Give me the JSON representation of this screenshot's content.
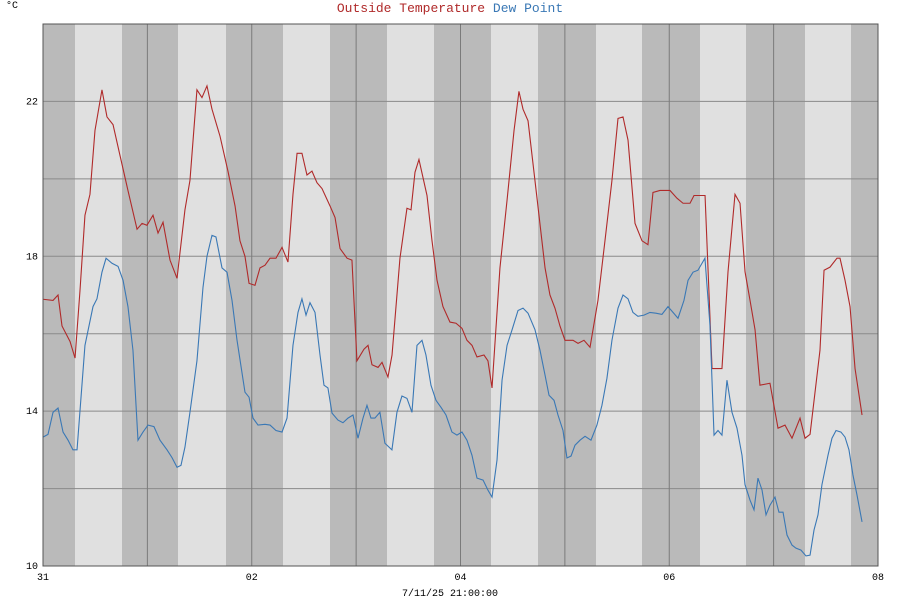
{
  "chart_data": {
    "type": "line",
    "ylabel": "°C",
    "xlabel": "7/11/25 21:00:00",
    "xlim": [
      0,
      8
    ],
    "xticks": [
      {
        "value": 0,
        "label": "31"
      },
      {
        "value": 1,
        "label": null
      },
      {
        "value": 2,
        "label": "02"
      },
      {
        "value": 3,
        "label": null
      },
      {
        "value": 4,
        "label": "04"
      },
      {
        "value": 5,
        "label": null
      },
      {
        "value": 6,
        "label": "06"
      },
      {
        "value": 7,
        "label": null
      },
      {
        "value": 8,
        "label": "08"
      }
    ],
    "ylim": [
      10,
      24
    ],
    "yticks": [
      10,
      {
        "value": 12,
        "label": null
      },
      14,
      {
        "value": 16,
        "label": null
      },
      18,
      {
        "value": 20,
        "label": null
      },
      22,
      {
        "value": 24,
        "label": null
      }
    ],
    "grid": true,
    "series": [
      {
        "name": "Outside Temperature",
        "color": "#b02a2a",
        "x": [
          0,
          0.096,
          0.144,
          0.182,
          0.259,
          0.307,
          0.354,
          0.402,
          0.45,
          0.498,
          0.565,
          0.613,
          0.671,
          0.738,
          0.814,
          0.901,
          0.949,
          0.996,
          1.054,
          1.102,
          1.15,
          1.217,
          1.284,
          1.36,
          1.408,
          1.475,
          1.523,
          1.571,
          1.619,
          1.696,
          1.772,
          1.84,
          1.887,
          1.935,
          1.974,
          2.031,
          2.079,
          2.127,
          2.175,
          2.232,
          2.29,
          2.347,
          2.395,
          2.434,
          2.481,
          2.529,
          2.577,
          2.625,
          2.673,
          2.75,
          2.798,
          2.846,
          2.913,
          2.96,
          3.008,
          3.075,
          3.114,
          3.152,
          3.21,
          3.248,
          3.305,
          3.344,
          3.42,
          3.487,
          3.526,
          3.564,
          3.602,
          3.679,
          3.727,
          3.775,
          3.832,
          3.899,
          3.957,
          4.014,
          4.062,
          4.11,
          4.158,
          4.225,
          4.263,
          4.302,
          4.378,
          4.446,
          4.513,
          4.56,
          4.599,
          4.647,
          4.733,
          4.81,
          4.857,
          4.905,
          4.953,
          5.001,
          5.078,
          5.126,
          5.183,
          5.241,
          5.317,
          5.384,
          5.451,
          5.509,
          5.557,
          5.605,
          5.672,
          5.739,
          5.796,
          5.844,
          5.911,
          6.007,
          6.074,
          6.132,
          6.199,
          6.237,
          6.343,
          6.41,
          6.505,
          6.563,
          6.63,
          6.678,
          6.726,
          6.774,
          6.822,
          6.869,
          6.965,
          7.042,
          7.109,
          7.176,
          7.253,
          7.301,
          7.349,
          7.444,
          7.483,
          7.54,
          7.607,
          7.636,
          7.684,
          7.732,
          7.78,
          7.847
        ],
        "values": [
          16.89,
          16.86,
          17.0,
          16.2,
          15.8,
          15.37,
          17.1,
          19.06,
          19.6,
          21.25,
          22.3,
          21.6,
          21.4,
          20.6,
          19.7,
          18.7,
          18.85,
          18.8,
          19.06,
          18.6,
          18.88,
          17.9,
          17.43,
          19.2,
          19.96,
          22.3,
          22.1,
          22.4,
          21.8,
          21.1,
          20.2,
          19.3,
          18.4,
          18.0,
          17.3,
          17.25,
          17.7,
          17.77,
          17.95,
          17.95,
          18.23,
          17.85,
          19.6,
          20.66,
          20.66,
          20.1,
          20.2,
          19.9,
          19.75,
          19.3,
          19.0,
          18.2,
          17.95,
          17.9,
          15.3,
          15.6,
          15.7,
          15.2,
          15.13,
          15.26,
          14.88,
          15.45,
          17.95,
          19.24,
          19.2,
          20.17,
          20.5,
          19.57,
          18.4,
          17.38,
          16.7,
          16.3,
          16.27,
          16.14,
          15.83,
          15.7,
          15.4,
          15.45,
          15.3,
          14.6,
          17.7,
          19.45,
          21.25,
          22.26,
          21.8,
          21.5,
          19.5,
          17.7,
          17.0,
          16.66,
          16.2,
          15.83,
          15.83,
          15.75,
          15.83,
          15.65,
          16.86,
          18.4,
          19.96,
          21.56,
          21.6,
          21.0,
          18.85,
          18.4,
          18.3,
          19.65,
          19.7,
          19.7,
          19.5,
          19.37,
          19.37,
          19.57,
          19.57,
          15.1,
          15.1,
          17.6,
          19.6,
          19.37,
          17.6,
          16.86,
          16.1,
          14.67,
          14.72,
          13.56,
          13.64,
          13.3,
          13.82,
          13.3,
          13.4,
          15.57,
          17.64,
          17.72,
          17.95,
          17.95,
          17.38,
          16.7,
          15.1,
          13.9
        ]
      },
      {
        "name": "Dew Point",
        "color": "#3a78b5",
        "x": [
          0,
          0.048,
          0.096,
          0.144,
          0.192,
          0.24,
          0.287,
          0.326,
          0.402,
          0.479,
          0.517,
          0.565,
          0.604,
          0.661,
          0.719,
          0.767,
          0.814,
          0.862,
          0.91,
          0.958,
          1.006,
          1.063,
          1.121,
          1.188,
          1.236,
          1.284,
          1.322,
          1.36,
          1.408,
          1.475,
          1.533,
          1.571,
          1.619,
          1.657,
          1.715,
          1.763,
          1.811,
          1.859,
          1.935,
          1.974,
          2.012,
          2.06,
          2.127,
          2.175,
          2.232,
          2.29,
          2.338,
          2.395,
          2.443,
          2.481,
          2.52,
          2.558,
          2.606,
          2.654,
          2.692,
          2.73,
          2.769,
          2.826,
          2.874,
          2.922,
          2.97,
          3.018,
          3.066,
          3.104,
          3.142,
          3.18,
          3.228,
          3.276,
          3.343,
          3.391,
          3.439,
          3.487,
          3.535,
          3.583,
          3.631,
          3.669,
          3.717,
          3.765,
          3.813,
          3.861,
          3.918,
          3.966,
          4.014,
          4.062,
          4.11,
          4.158,
          4.216,
          4.263,
          4.302,
          4.35,
          4.398,
          4.446,
          4.494,
          4.551,
          4.599,
          4.647,
          4.714,
          4.762,
          4.81,
          4.848,
          4.896,
          4.934,
          4.982,
          5.02,
          5.059,
          5.097,
          5.145,
          5.193,
          5.25,
          5.307,
          5.355,
          5.403,
          5.451,
          5.509,
          5.557,
          5.605,
          5.652,
          5.7,
          5.758,
          5.815,
          5.872,
          5.93,
          5.988,
          6.036,
          6.084,
          6.141,
          6.18,
          6.228,
          6.275,
          6.342,
          6.39,
          6.429,
          6.467,
          6.505,
          6.553,
          6.601,
          6.649,
          6.697,
          6.726,
          6.774,
          6.812,
          6.85,
          6.889,
          6.927,
          6.965,
          7.013,
          7.051,
          7.09,
          7.128,
          7.176,
          7.214,
          7.262,
          7.31,
          7.349,
          7.387,
          7.425,
          7.463,
          7.521,
          7.559,
          7.598,
          7.645,
          7.684,
          7.722,
          7.76,
          7.799,
          7.847
        ],
        "values": [
          13.33,
          13.4,
          13.97,
          14.08,
          13.46,
          13.25,
          13.0,
          13.0,
          15.7,
          16.7,
          16.9,
          17.59,
          17.95,
          17.82,
          17.74,
          17.38,
          16.7,
          15.57,
          13.25,
          13.46,
          13.64,
          13.6,
          13.25,
          13.0,
          12.8,
          12.55,
          12.6,
          13.07,
          13.97,
          15.3,
          17.2,
          18.0,
          18.54,
          18.5,
          17.7,
          17.59,
          16.86,
          15.83,
          14.49,
          14.36,
          13.82,
          13.64,
          13.66,
          13.64,
          13.5,
          13.46,
          13.82,
          15.7,
          16.55,
          16.9,
          16.48,
          16.8,
          16.55,
          15.45,
          14.67,
          14.6,
          13.95,
          13.77,
          13.7,
          13.82,
          13.9,
          13.3,
          13.82,
          14.15,
          13.82,
          13.82,
          13.97,
          13.17,
          13.0,
          13.97,
          14.39,
          14.33,
          13.97,
          15.7,
          15.83,
          15.45,
          14.67,
          14.28,
          14.1,
          13.9,
          13.46,
          13.38,
          13.46,
          13.25,
          12.86,
          12.27,
          12.22,
          11.96,
          11.78,
          12.74,
          14.8,
          15.7,
          16.1,
          16.6,
          16.66,
          16.53,
          16.1,
          15.57,
          14.93,
          14.41,
          14.28,
          13.9,
          13.5,
          12.79,
          12.84,
          13.12,
          13.25,
          13.35,
          13.25,
          13.64,
          14.15,
          14.85,
          15.83,
          16.66,
          17.0,
          16.9,
          16.55,
          16.45,
          16.48,
          16.55,
          16.53,
          16.5,
          16.7,
          16.55,
          16.4,
          16.86,
          17.38,
          17.59,
          17.64,
          17.95,
          16.22,
          13.38,
          13.5,
          13.38,
          14.8,
          13.97,
          13.56,
          12.86,
          12.1,
          11.7,
          11.45,
          12.27,
          11.96,
          11.32,
          11.57,
          11.78,
          11.39,
          11.39,
          10.8,
          10.54,
          10.46,
          10.41,
          10.26,
          10.28,
          10.93,
          11.32,
          12.1,
          12.86,
          13.3,
          13.5,
          13.46,
          13.33,
          13.0,
          12.35,
          11.83,
          11.14
        ]
      }
    ]
  }
}
